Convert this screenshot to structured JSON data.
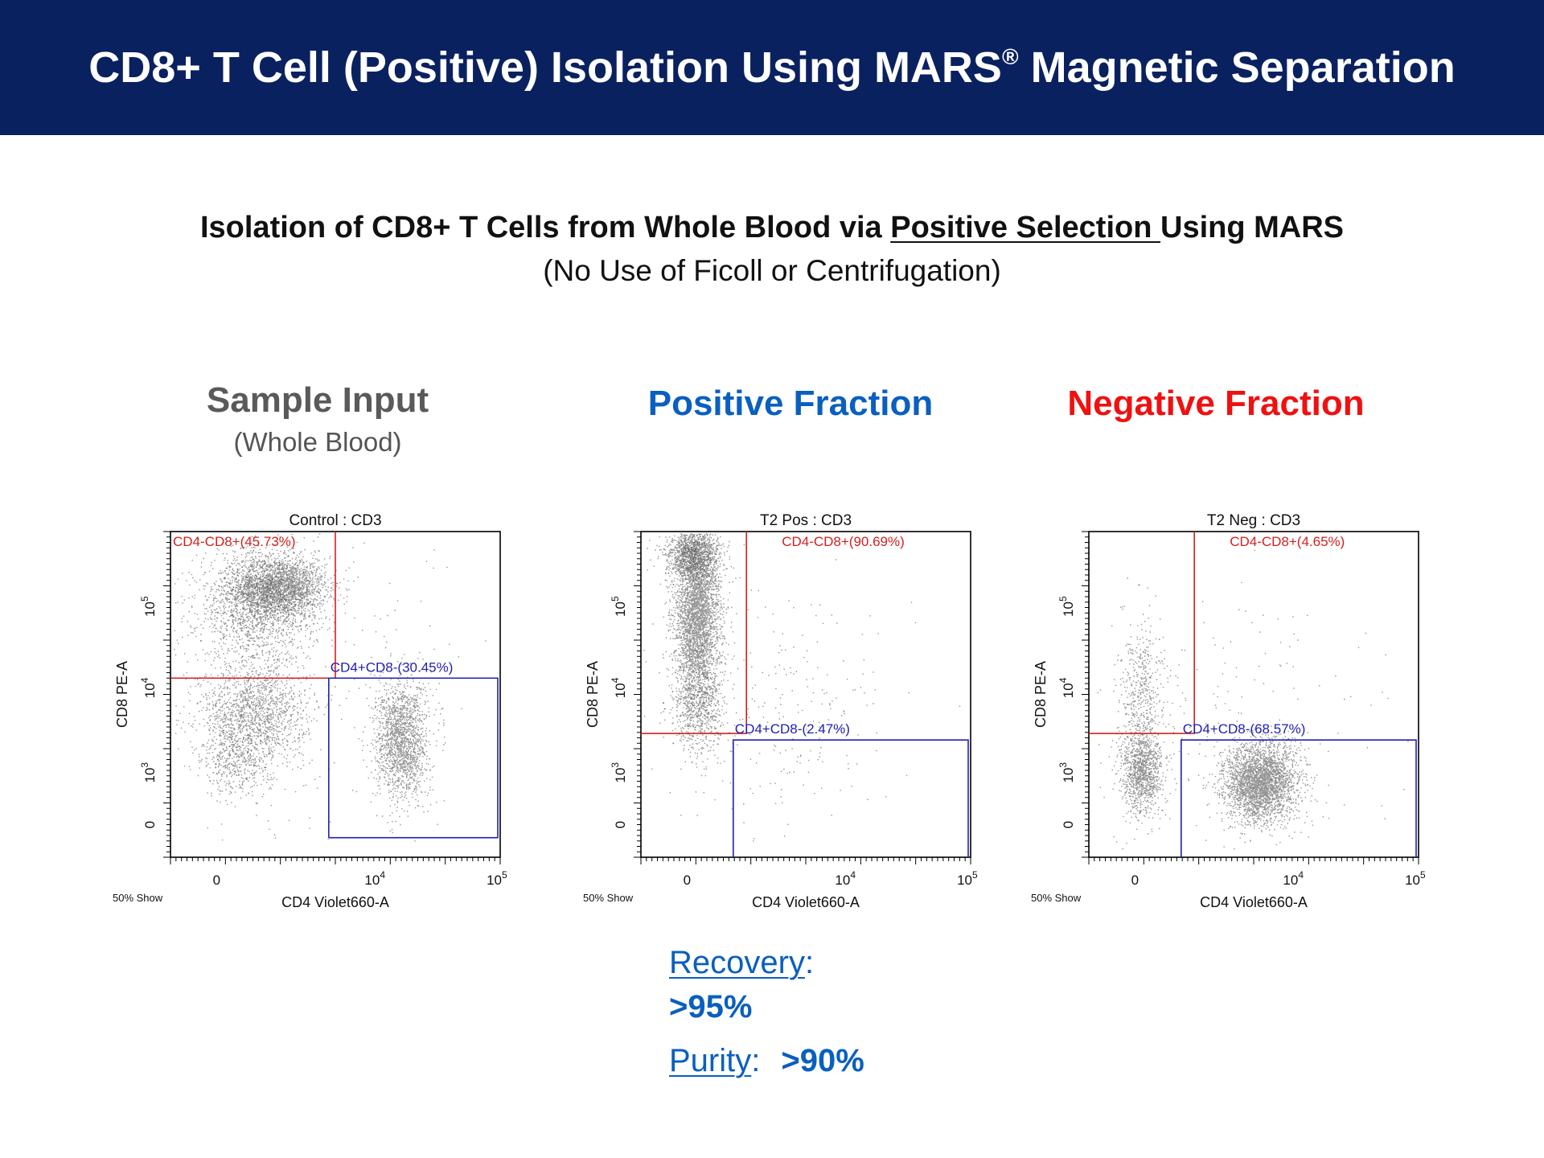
{
  "header": {
    "title": "CD8+ T Cell (Positive) Isolation Using MARS",
    "registered": "®",
    "title_end": " Magnetic Separation"
  },
  "subtitle": {
    "part1": "Isolation of CD8+ T Cells from Whole Blood via ",
    "underlined": "Positive Selection ",
    "part2": "Using MARS",
    "note": "(No Use of Ficoll or Centrifugation)"
  },
  "panels": [
    {
      "title": "Sample Input",
      "note": "(Whole Blood)",
      "color": "#5a5a5a"
    },
    {
      "title": "Positive Fraction",
      "note": "",
      "color": "#0a5fc0"
    },
    {
      "title": "Negative Fraction",
      "note": "",
      "color": "#f01010"
    }
  ],
  "chart_data": [
    {
      "type": "scatter",
      "title": "Control : CD3",
      "xlabel": "CD4 Violet660-A",
      "ylabel": "CD8 PE-A",
      "footer": "50% Show",
      "xticks": [
        "0",
        "10",
        "10"
      ],
      "xtick_exp": [
        "",
        "4",
        "5"
      ],
      "yticks": [
        "0",
        "10",
        "10",
        "10"
      ],
      "ytick_exp": [
        "",
        "3",
        "4",
        "5"
      ],
      "gates": [
        {
          "name": "CD4-CD8+(45.73%)",
          "color": "#d42020",
          "percent": 45.73
        },
        {
          "name": "CD4+CD8-(30.45%)",
          "color": "#2020b0",
          "percent": 30.45
        }
      ],
      "populations": [
        {
          "cx": 0.33,
          "cy": 0.83,
          "sx": 0.07,
          "sy": 0.045,
          "n": 2200
        },
        {
          "cx": 0.26,
          "cy": 0.77,
          "sx": 0.09,
          "sy": 0.09,
          "n": 1600
        },
        {
          "cx": 0.25,
          "cy": 0.44,
          "sx": 0.08,
          "sy": 0.08,
          "n": 1500
        },
        {
          "cx": 0.7,
          "cy": 0.36,
          "sx": 0.04,
          "sy": 0.09,
          "n": 1700
        },
        {
          "cx": 0.2,
          "cy": 0.3,
          "sx": 0.05,
          "sy": 0.06,
          "n": 400
        },
        {
          "cx": 0.45,
          "cy": 0.55,
          "sx": 0.25,
          "sy": 0.25,
          "n": 250
        }
      ]
    },
    {
      "type": "scatter",
      "title": "T2 Pos : CD3",
      "xlabel": "CD4 Violet660-A",
      "ylabel": "CD8 PE-A",
      "footer": "50% Show",
      "xticks": [
        "0",
        "10",
        "10"
      ],
      "xtick_exp": [
        "",
        "4",
        "5"
      ],
      "yticks": [
        "0",
        "10",
        "10",
        "10"
      ],
      "ytick_exp": [
        "",
        "3",
        "4",
        "5"
      ],
      "gates": [
        {
          "name": "CD4-CD8+(90.69%)",
          "color": "#d42020",
          "percent": 90.69
        },
        {
          "name": "CD4+CD8-(2.47%)",
          "color": "#2020b0",
          "percent": 2.47
        }
      ],
      "populations": [
        {
          "cx": 0.17,
          "cy": 0.75,
          "sx": 0.035,
          "sy": 0.15,
          "n": 3800
        },
        {
          "cx": 0.15,
          "cy": 0.93,
          "sx": 0.04,
          "sy": 0.035,
          "n": 900
        },
        {
          "cx": 0.17,
          "cy": 0.45,
          "sx": 0.04,
          "sy": 0.07,
          "n": 500
        },
        {
          "cx": 0.4,
          "cy": 0.45,
          "sx": 0.2,
          "sy": 0.2,
          "n": 260
        }
      ]
    },
    {
      "type": "scatter",
      "title": "T2 Neg : CD3",
      "xlabel": "CD4 Violet660-A",
      "ylabel": "CD8 PE-A",
      "footer": "50% Show",
      "xticks": [
        "0",
        "10",
        "10"
      ],
      "xtick_exp": [
        "",
        "4",
        "5"
      ],
      "yticks": [
        "0",
        "10",
        "10",
        "10"
      ],
      "ytick_exp": [
        "",
        "3",
        "4",
        "5"
      ],
      "gates": [
        {
          "name": "CD4-CD8+(4.65%)",
          "color": "#d42020",
          "percent": 4.65
        },
        {
          "name": "CD4+CD8-(68.57%)",
          "color": "#2020b0",
          "percent": 68.57
        }
      ],
      "populations": [
        {
          "cx": 0.52,
          "cy": 0.23,
          "sx": 0.055,
          "sy": 0.06,
          "n": 3000
        },
        {
          "cx": 0.16,
          "cy": 0.26,
          "sx": 0.03,
          "sy": 0.06,
          "n": 1100
        },
        {
          "cx": 0.16,
          "cy": 0.5,
          "sx": 0.035,
          "sy": 0.12,
          "n": 500
        },
        {
          "cx": 0.4,
          "cy": 0.4,
          "sx": 0.22,
          "sy": 0.2,
          "n": 220
        }
      ]
    }
  ],
  "stats": {
    "recovery_label": "Recovery",
    "recovery_value": ">95%",
    "purity_label": "Purity",
    "purity_value": ">90%",
    "colon": ":"
  }
}
